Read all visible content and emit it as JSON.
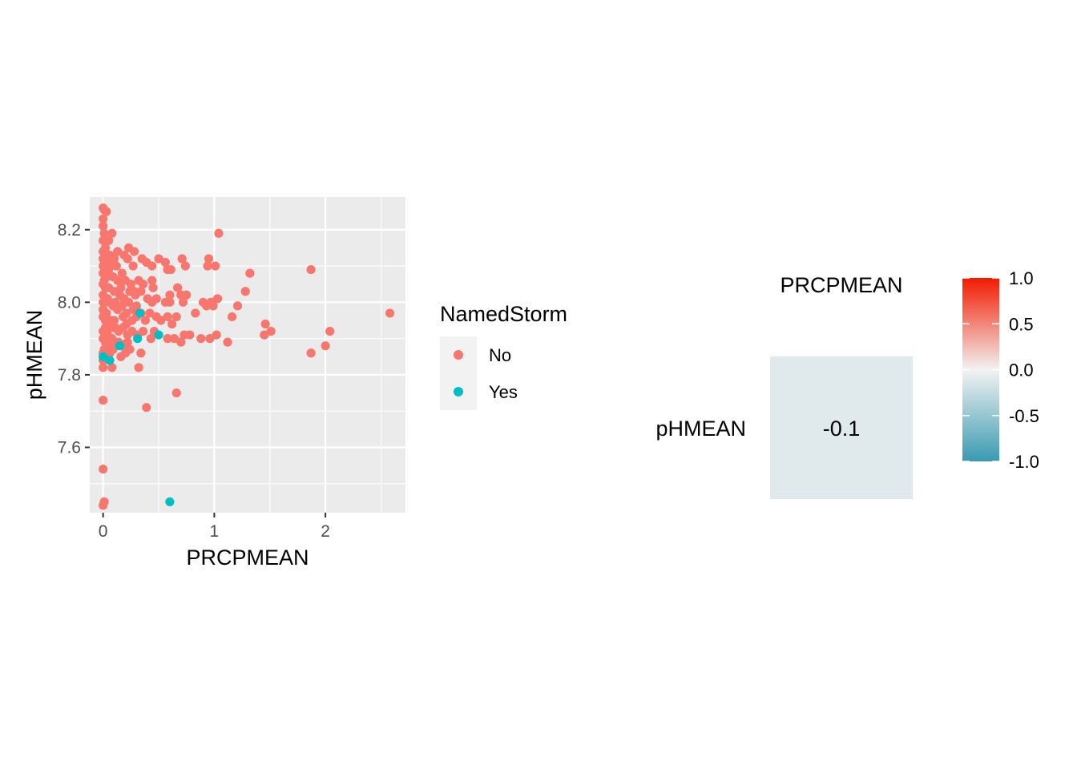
{
  "chart_data": [
    {
      "type": "scatter",
      "xlabel": "PRCPMEAN",
      "ylabel": "pHMEAN",
      "xlim": [
        -0.12,
        2.72
      ],
      "ylim": [
        7.42,
        8.29
      ],
      "x_ticks": [
        {
          "value": 0,
          "label": "0"
        },
        {
          "value": 1,
          "label": "1"
        },
        {
          "value": 2,
          "label": "2"
        }
      ],
      "y_ticks": [
        {
          "value": 7.6,
          "label": "7.6"
        },
        {
          "value": 7.8,
          "label": "7.8"
        },
        {
          "value": 8.0,
          "label": "8.0"
        },
        {
          "value": 8.2,
          "label": "8.2"
        }
      ],
      "grid": true,
      "legend": {
        "title": "NamedStorm",
        "placement": "right",
        "entries": [
          {
            "label": "No",
            "color": "#F8766D"
          },
          {
            "label": "Yes",
            "color": "#00BFC4"
          }
        ]
      },
      "series": [
        {
          "name": "No",
          "color": "#F8766D",
          "points": [
            [
              0.0,
              8.26
            ],
            [
              0.01,
              8.255
            ],
            [
              0.03,
              8.25
            ],
            [
              0.0,
              8.23
            ],
            [
              0.0,
              8.21
            ],
            [
              0.01,
              8.19
            ],
            [
              0.08,
              8.19
            ],
            [
              0.0,
              8.17
            ],
            [
              0.05,
              8.17
            ],
            [
              0.02,
              8.15
            ],
            [
              0.0,
              8.14
            ],
            [
              0.06,
              8.13
            ],
            [
              0.13,
              8.14
            ],
            [
              0.1,
              8.12
            ],
            [
              0.0,
              8.12
            ],
            [
              0.03,
              8.11
            ],
            [
              0.23,
              8.15
            ],
            [
              0.28,
              8.14
            ],
            [
              0.19,
              8.13
            ],
            [
              0.22,
              8.12
            ],
            [
              0.0,
              8.1
            ],
            [
              0.05,
              8.09
            ],
            [
              0.12,
              8.1
            ],
            [
              0.17,
              8.08
            ],
            [
              0.27,
              8.1
            ],
            [
              0.35,
              8.12
            ],
            [
              0.39,
              8.11
            ],
            [
              0.44,
              8.1
            ],
            [
              0.5,
              8.12
            ],
            [
              0.56,
              8.11
            ],
            [
              0.58,
              8.09
            ],
            [
              0.61,
              8.09
            ],
            [
              0.71,
              8.12
            ],
            [
              0.74,
              8.1
            ],
            [
              0.95,
              8.12
            ],
            [
              0.94,
              8.1
            ],
            [
              1.01,
              8.1
            ],
            [
              1.04,
              8.19
            ],
            [
              1.32,
              8.08
            ],
            [
              1.87,
              8.09
            ],
            [
              0.0,
              8.08
            ],
            [
              0.03,
              8.07
            ],
            [
              0.09,
              8.07
            ],
            [
              0.13,
              8.06
            ],
            [
              0.2,
              8.06
            ],
            [
              0.25,
              8.05
            ],
            [
              0.32,
              8.06
            ],
            [
              0.36,
              8.05
            ],
            [
              0.44,
              8.06
            ],
            [
              0.45,
              8.04
            ],
            [
              0.0,
              8.05
            ],
            [
              0.05,
              8.04
            ],
            [
              0.16,
              8.04
            ],
            [
              0.24,
              8.03
            ],
            [
              0.29,
              8.02
            ],
            [
              0.34,
              8.03
            ],
            [
              0.4,
              8.01
            ],
            [
              0.44,
              8.0
            ],
            [
              0.48,
              8.01
            ],
            [
              0.56,
              8.0
            ],
            [
              0.6,
              8.02
            ],
            [
              0.6,
              8.0
            ],
            [
              0.67,
              8.04
            ],
            [
              0.7,
              8.02
            ],
            [
              0.72,
              8.0
            ],
            [
              0.75,
              8.02
            ],
            [
              0.9,
              8.0
            ],
            [
              0.93,
              7.99
            ],
            [
              0.97,
              8.0
            ],
            [
              0.99,
              7.99
            ],
            [
              1.03,
              8.01
            ],
            [
              1.21,
              7.99
            ],
            [
              1.28,
              8.03
            ],
            [
              0.0,
              8.02
            ],
            [
              0.02,
              8.0
            ],
            [
              0.04,
              8.01
            ],
            [
              0.09,
              7.99
            ],
            [
              0.11,
              8.0
            ],
            [
              0.13,
              7.98
            ],
            [
              0.17,
              7.99
            ],
            [
              0.21,
              7.97
            ],
            [
              0.27,
              7.98
            ],
            [
              0.3,
              7.96
            ],
            [
              0.34,
              7.97
            ],
            [
              0.38,
              7.95
            ],
            [
              0.42,
              7.97
            ],
            [
              0.48,
              7.96
            ],
            [
              0.52,
              7.95
            ],
            [
              0.58,
              7.96
            ],
            [
              0.62,
              7.94
            ],
            [
              0.66,
              7.96
            ],
            [
              0.83,
              7.97
            ],
            [
              1.16,
              7.96
            ],
            [
              1.46,
              7.94
            ],
            [
              0.0,
              7.96
            ],
            [
              0.02,
              7.95
            ],
            [
              0.05,
              7.94
            ],
            [
              0.08,
              7.93
            ],
            [
              0.1,
              7.95
            ],
            [
              0.14,
              7.92
            ],
            [
              0.18,
              7.93
            ],
            [
              0.22,
              7.91
            ],
            [
              0.26,
              7.92
            ],
            [
              0.31,
              7.91
            ],
            [
              0.36,
              7.92
            ],
            [
              0.43,
              7.9
            ],
            [
              0.46,
              7.92
            ],
            [
              0.58,
              7.9
            ],
            [
              0.64,
              7.9
            ],
            [
              0.7,
              7.89
            ],
            [
              0.73,
              7.91
            ],
            [
              0.78,
              7.91
            ],
            [
              0.88,
              7.9
            ],
            [
              0.96,
              7.9
            ],
            [
              1.02,
              7.91
            ],
            [
              1.12,
              7.89
            ],
            [
              1.45,
              7.91
            ],
            [
              1.51,
              7.92
            ],
            [
              2.04,
              7.92
            ],
            [
              2.0,
              7.88
            ],
            [
              1.87,
              7.86
            ],
            [
              2.58,
              7.97
            ],
            [
              0.0,
              7.9
            ],
            [
              0.02,
              7.89
            ],
            [
              0.05,
              7.88
            ],
            [
              0.09,
              7.87
            ],
            [
              0.12,
              7.88
            ],
            [
              0.16,
              7.85
            ],
            [
              0.2,
              7.86
            ],
            [
              0.24,
              7.87
            ],
            [
              0.34,
              7.86
            ],
            [
              0.32,
              7.82
            ],
            [
              0.0,
              7.86
            ],
            [
              0.0,
              7.82
            ],
            [
              0.08,
              7.82
            ],
            [
              0.0,
              7.73
            ],
            [
              0.39,
              7.71
            ],
            [
              0.66,
              7.75
            ],
            [
              0.0,
              7.54
            ],
            [
              0.0,
              7.44
            ],
            [
              0.01,
              7.45
            ],
            [
              0.0,
              8.0
            ],
            [
              0.0,
              7.98
            ],
            [
              0.0,
              7.92
            ],
            [
              0.0,
              7.84
            ],
            [
              0.01,
              8.06
            ],
            [
              0.01,
              7.97
            ],
            [
              0.01,
              7.87
            ],
            [
              0.02,
              8.04
            ],
            [
              0.02,
              7.93
            ],
            [
              0.03,
              7.97
            ],
            [
              0.04,
              7.91
            ],
            [
              0.04,
              8.08
            ],
            [
              0.06,
              8.0
            ],
            [
              0.07,
              7.95
            ],
            [
              0.07,
              8.11
            ],
            [
              0.08,
              7.9
            ],
            [
              0.1,
              8.03
            ],
            [
              0.11,
              7.93
            ],
            [
              0.15,
              7.99
            ],
            [
              0.15,
              8.02
            ],
            [
              0.18,
              7.96
            ],
            [
              0.19,
              8.01
            ],
            [
              0.21,
              7.94
            ],
            [
              0.23,
              8.0
            ],
            [
              0.26,
              7.95
            ],
            [
              0.28,
              8.03
            ],
            [
              0.3,
              7.99
            ],
            [
              0.06,
              7.86
            ],
            [
              0.14,
              7.89
            ],
            [
              0.18,
              7.88
            ],
            [
              0.22,
              7.89
            ]
          ]
        },
        {
          "name": "Yes",
          "color": "#00BFC4",
          "points": [
            [
              0.33,
              7.97
            ],
            [
              0.31,
              7.9
            ],
            [
              0.5,
              7.91
            ],
            [
              0.06,
              7.84
            ],
            [
              0.0,
              7.85
            ],
            [
              0.6,
              7.45
            ],
            [
              0.15,
              7.88
            ]
          ]
        }
      ]
    },
    {
      "type": "heatmap",
      "columns": [
        "PRCPMEAN"
      ],
      "rows": [
        "pHMEAN"
      ],
      "values": [
        [
          -0.1
        ]
      ],
      "cell_labels": [
        [
          "-0.1"
        ]
      ],
      "colorbar": {
        "range": [
          -1.0,
          1.0
        ],
        "ticks": [
          {
            "value": 1.0,
            "label": "1.0"
          },
          {
            "value": 0.5,
            "label": "0.5"
          },
          {
            "value": 0.0,
            "label": "0.0"
          },
          {
            "value": -0.5,
            "label": "-0.5"
          },
          {
            "value": -1.0,
            "label": "-1.0"
          }
        ],
        "low_color": "#3A9AB2",
        "mid_color": "#F2F2F2",
        "high_color": "#F21A00"
      }
    }
  ]
}
